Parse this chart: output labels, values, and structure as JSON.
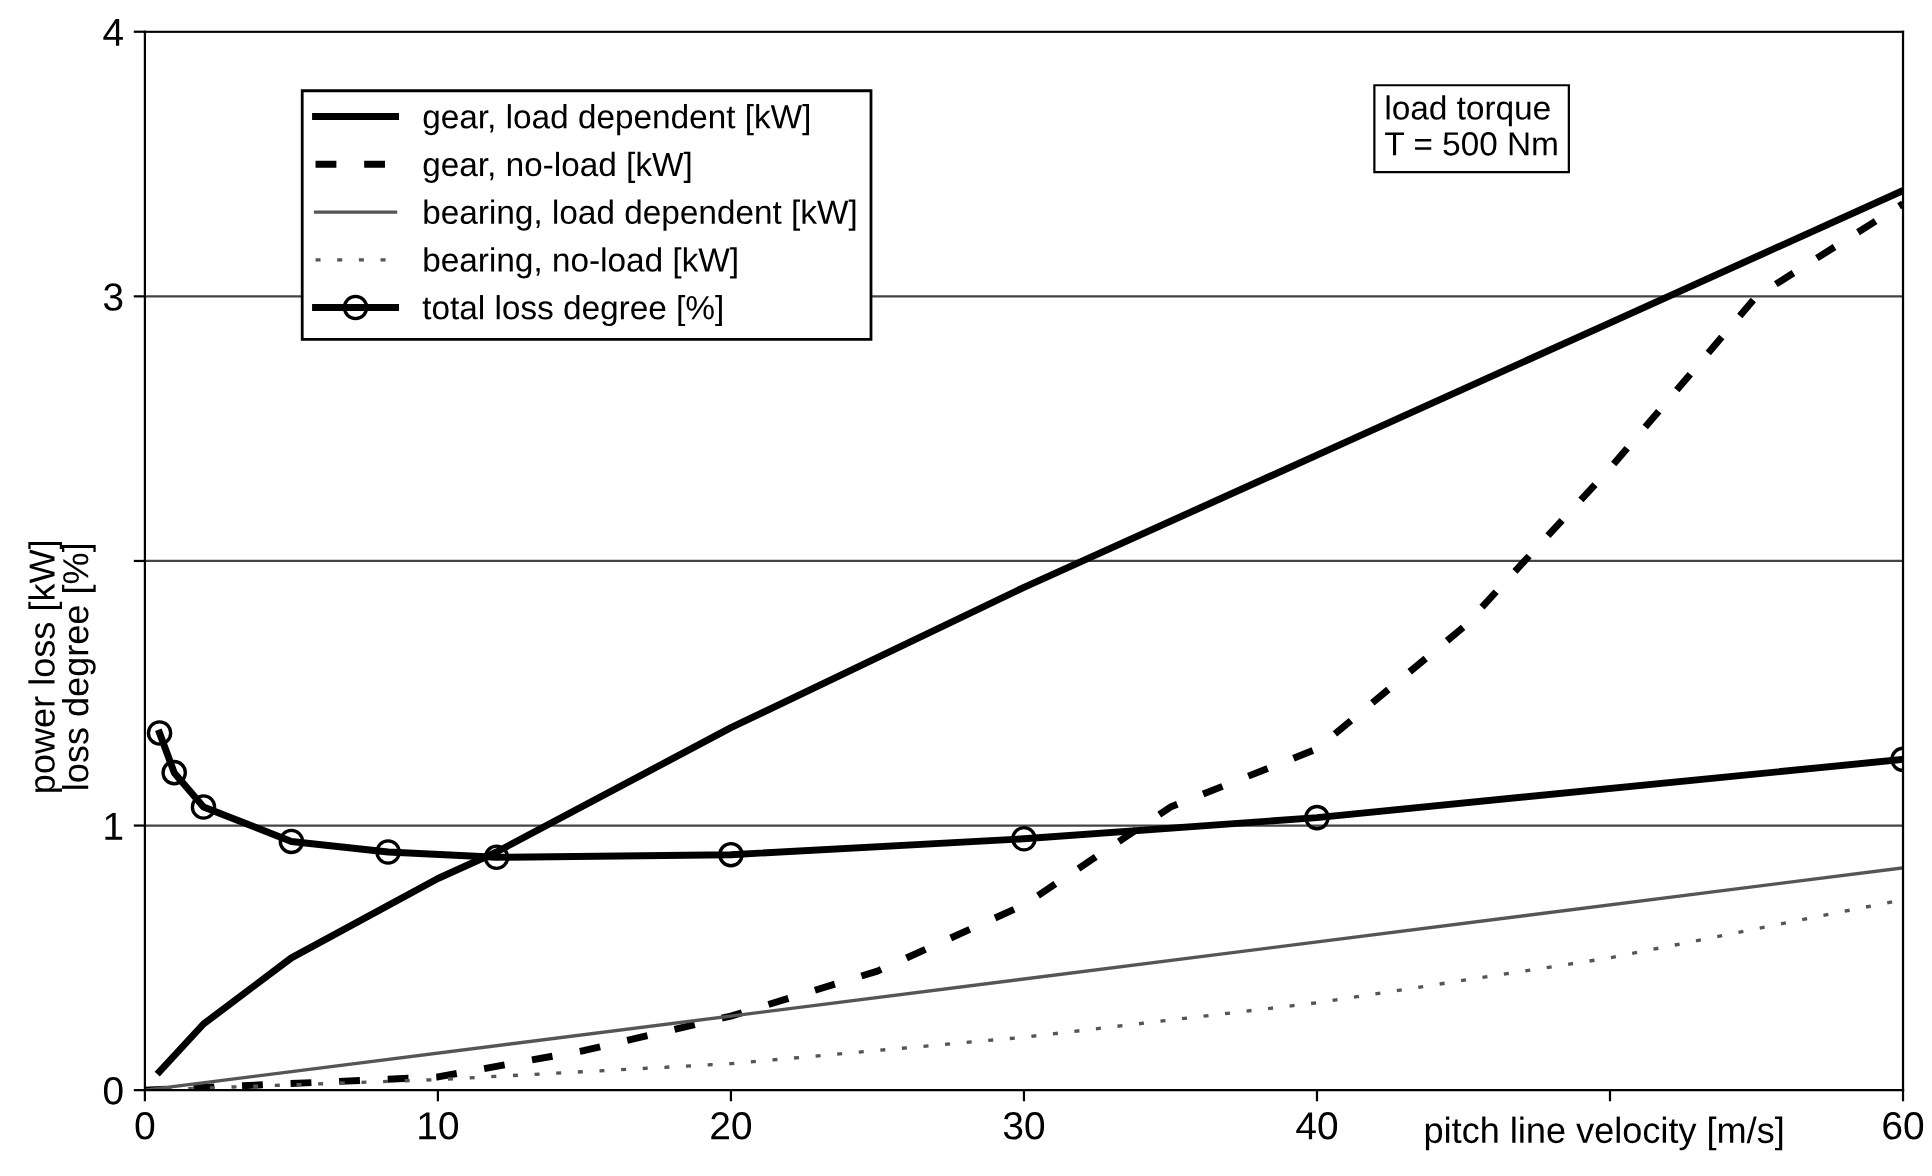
{
  "chart_data": {
    "type": "line",
    "xlabel": "pitch line velocity [m/s]",
    "ylabel": "power loss [kW]\nloss degree [%]",
    "xlim": [
      0,
      60
    ],
    "ylim": [
      0,
      4
    ],
    "xticks": [
      0,
      10,
      20,
      30,
      40,
      {
        "value": 50,
        "label": null
      },
      60
    ],
    "yticks": [
      0,
      1,
      {
        "value": 2,
        "label": null
      },
      3,
      4
    ],
    "grid": "y",
    "legend": "top left",
    "annotations": [
      "load torque\nT = 500 Nm"
    ],
    "series": [
      {
        "name": "gear, load dependent [kW]",
        "color": "#000000",
        "line_style": "solid",
        "marker": "none",
        "x": [
          0.5,
          2,
          5,
          10,
          12,
          20,
          30,
          40,
          50,
          60
        ],
        "values": [
          0.07,
          0.25,
          0.5,
          0.8,
          0.9,
          1.37,
          1.9,
          2.4,
          2.9,
          3.4
        ]
      },
      {
        "name": "gear, no-load [kW]",
        "color": "#000000",
        "line_style": "dashed",
        "marker": "none",
        "x": [
          0,
          10,
          15,
          20,
          25,
          30,
          35,
          40,
          45,
          50,
          55,
          60
        ],
        "values": [
          0,
          0.05,
          0.15,
          0.28,
          0.45,
          0.7,
          1.07,
          1.29,
          1.75,
          2.35,
          3.0,
          3.35
        ]
      },
      {
        "name": "bearing, load dependent [kW]",
        "color": "#555555",
        "line_style": "solid",
        "marker": "none",
        "x": [
          0,
          60
        ],
        "values": [
          0,
          0.84
        ]
      },
      {
        "name": "bearing, no-load [kW]",
        "color": "#555555",
        "line_style": "dotted",
        "marker": "none",
        "x": [
          0,
          10,
          20,
          30,
          40,
          50,
          60
        ],
        "values": [
          0,
          0.04,
          0.1,
          0.2,
          0.33,
          0.5,
          0.72
        ]
      },
      {
        "name": "total loss degree [%]",
        "color": "#000000",
        "line_style": "solid",
        "marker": "circle",
        "x": [
          0.5,
          1,
          2,
          5,
          8.3,
          12,
          20,
          30,
          40,
          60
        ],
        "values": [
          1.35,
          1.2,
          1.07,
          0.94,
          0.9,
          0.88,
          0.89,
          0.95,
          1.03,
          1.25
        ]
      }
    ]
  }
}
